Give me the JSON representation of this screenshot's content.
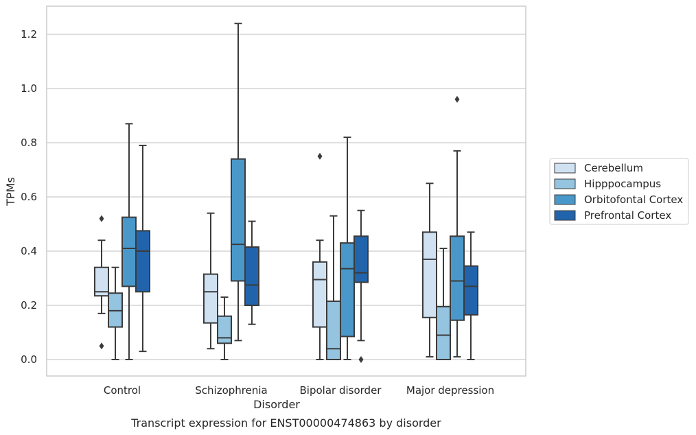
{
  "chart_data": {
    "type": "box",
    "categories": [
      "Control",
      "Schizophrenia",
      "Bipolar disorder",
      "Major depression"
    ],
    "xlabel": "Disorder",
    "ylabel": "TPMs",
    "caption": "Transcript expression for ENST00000474863 by disorder",
    "ylim": [
      -0.06,
      1.3
    ],
    "yticks": [
      0.0,
      0.2,
      0.4,
      0.6,
      0.8,
      1.0,
      1.2
    ],
    "ytick_labels": [
      "0.0",
      "0.2",
      "0.4",
      "0.6",
      "0.8",
      "1.0",
      "1.2"
    ],
    "grid": "horizontal",
    "legend_position": "right",
    "series": [
      {
        "name": "Cerebellum",
        "color": "#d0e1f2",
        "boxes": [
          {
            "whisker_low": 0.17,
            "q1": 0.235,
            "median": 0.25,
            "q3": 0.34,
            "whisker_high": 0.44,
            "outliers": [
              0.52,
              0.05
            ]
          },
          {
            "whisker_low": 0.04,
            "q1": 0.135,
            "median": 0.25,
            "q3": 0.315,
            "whisker_high": 0.54,
            "outliers": []
          },
          {
            "whisker_low": 0.0,
            "q1": 0.12,
            "median": 0.295,
            "q3": 0.36,
            "whisker_high": 0.44,
            "outliers": [
              0.75
            ]
          },
          {
            "whisker_low": 0.01,
            "q1": 0.155,
            "median": 0.37,
            "q3": 0.47,
            "whisker_high": 0.65,
            "outliers": []
          }
        ]
      },
      {
        "name": "Hipppocampus",
        "color": "#94c4df",
        "boxes": [
          {
            "whisker_low": 0.0,
            "q1": 0.12,
            "median": 0.18,
            "q3": 0.245,
            "whisker_high": 0.34,
            "outliers": []
          },
          {
            "whisker_low": 0.0,
            "q1": 0.06,
            "median": 0.08,
            "q3": 0.16,
            "whisker_high": 0.23,
            "outliers": []
          },
          {
            "whisker_low": 0.0,
            "q1": 0.0,
            "median": 0.04,
            "q3": 0.215,
            "whisker_high": 0.53,
            "outliers": []
          },
          {
            "whisker_low": 0.0,
            "q1": 0.0,
            "median": 0.09,
            "q3": 0.195,
            "whisker_high": 0.41,
            "outliers": []
          }
        ]
      },
      {
        "name": "Orbitofontal Cortex",
        "color": "#4a98c9",
        "boxes": [
          {
            "whisker_low": 0.0,
            "q1": 0.27,
            "median": 0.41,
            "q3": 0.525,
            "whisker_high": 0.87,
            "outliers": []
          },
          {
            "whisker_low": 0.07,
            "q1": 0.29,
            "median": 0.425,
            "q3": 0.74,
            "whisker_high": 1.24,
            "outliers": []
          },
          {
            "whisker_low": 0.0,
            "q1": 0.085,
            "median": 0.335,
            "q3": 0.43,
            "whisker_high": 0.82,
            "outliers": []
          },
          {
            "whisker_low": 0.01,
            "q1": 0.145,
            "median": 0.29,
            "q3": 0.455,
            "whisker_high": 0.77,
            "outliers": [
              0.96
            ]
          }
        ]
      },
      {
        "name": "Prefrontal Cortex",
        "color": "#2164ab",
        "boxes": [
          {
            "whisker_low": 0.03,
            "q1": 0.25,
            "median": 0.4,
            "q3": 0.475,
            "whisker_high": 0.79,
            "outliers": []
          },
          {
            "whisker_low": 0.13,
            "q1": 0.2,
            "median": 0.275,
            "q3": 0.415,
            "whisker_high": 0.51,
            "outliers": []
          },
          {
            "whisker_low": 0.07,
            "q1": 0.285,
            "median": 0.32,
            "q3": 0.455,
            "whisker_high": 0.55,
            "outliers": [
              0.0
            ]
          },
          {
            "whisker_low": 0.0,
            "q1": 0.165,
            "median": 0.27,
            "q3": 0.345,
            "whisker_high": 0.47,
            "outliers": []
          }
        ]
      }
    ]
  }
}
